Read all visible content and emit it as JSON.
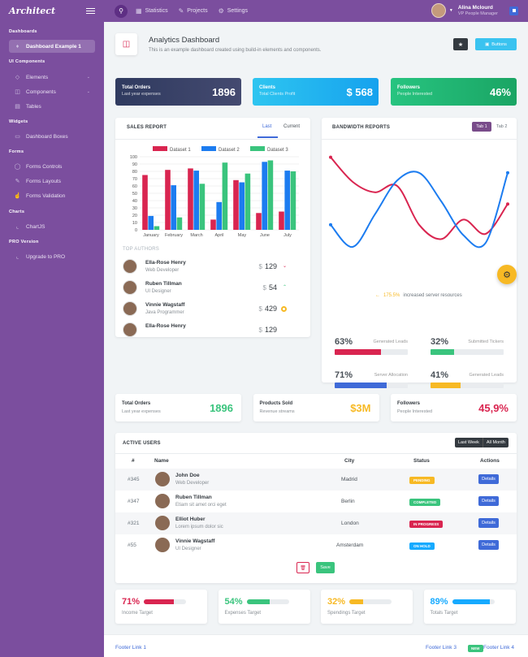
{
  "app": {
    "logo": "Architect"
  },
  "topnav": [
    {
      "label": "Statistics",
      "icon": "grid-icon"
    },
    {
      "label": "Projects",
      "icon": "edit-icon"
    },
    {
      "label": "Settings",
      "icon": "gear-icon"
    }
  ],
  "user": {
    "name": "Alina Mclourd",
    "role": "VP People Manager"
  },
  "sidebar": {
    "sections": [
      "Dashboards",
      "UI Components",
      "Widgets",
      "Forms",
      "Charts",
      "PRO Version"
    ],
    "items": [
      "Dashboard Example 1",
      "Elements",
      "Components",
      "Tables",
      "Dashboard Boxes",
      "Forms Controls",
      "Forms Layouts",
      "Forms Validation",
      "ChartJS",
      "Upgrade to PRO"
    ]
  },
  "page": {
    "title": "Analytics Dashboard",
    "subtitle": "This is an example dashboard created using build-in elements and components.",
    "buttons_label": "Buttons"
  },
  "tiles": [
    {
      "title": "Total Orders",
      "sub": "Last year expenses",
      "value": "1896",
      "color": "#444a70"
    },
    {
      "title": "Clients",
      "sub": "Total Clients Profit",
      "value": "$ 568",
      "color": "#2ec5f0"
    },
    {
      "title": "Followers",
      "sub": "People Interested",
      "value": "46%",
      "color": "#1ec580"
    }
  ],
  "sales": {
    "title": "Sales Report",
    "tabs": [
      "Last",
      "Current"
    ],
    "top_authors_label": "Top Authors",
    "authors": [
      {
        "name": "Ella-Rose Henry",
        "role": "Web Developer",
        "currency": "$",
        "value": "129",
        "indicator": "down"
      },
      {
        "name": "Ruben Tillman",
        "role": "UI Designer",
        "currency": "$",
        "value": "54",
        "indicator": "up"
      },
      {
        "name": "Vinnie Wagstaff",
        "role": "Java Programmer",
        "currency": "$",
        "value": "429",
        "indicator": "dot"
      },
      {
        "name": "Ella-Rose Henry",
        "role": "",
        "currency": "$",
        "value": "129",
        "indicator": ""
      }
    ]
  },
  "chart_data": [
    {
      "type": "bar",
      "categories": [
        "January",
        "February",
        "March",
        "April",
        "May",
        "June",
        "July"
      ],
      "series": [
        {
          "name": "Dataset 1",
          "color": "#d92550",
          "values": [
            75,
            82,
            84,
            14,
            68,
            23,
            25
          ]
        },
        {
          "name": "Dataset 2",
          "color": "#1c7cf0",
          "values": [
            19,
            61,
            81,
            38,
            65,
            93,
            81
          ]
        },
        {
          "name": "Dataset 3",
          "color": "#3ac47d",
          "values": [
            5,
            17,
            63,
            92,
            77,
            95,
            80
          ]
        }
      ],
      "ylim": [
        0,
        100
      ],
      "yticks": [
        0,
        10,
        20,
        30,
        40,
        50,
        60,
        70,
        80,
        90,
        100
      ],
      "legend": "top",
      "grid": true
    },
    {
      "type": "line",
      "title": "Bandwidth Reports",
      "series": [
        {
          "color": "#d92550",
          "values": [
            94,
            75,
            67,
            72,
            42,
            31,
            46,
            35,
            58
          ]
        },
        {
          "color": "#1c7cf0",
          "values": [
            42,
            25,
            50,
            76,
            82,
            60,
            34,
            28,
            82
          ]
        }
      ]
    }
  ],
  "bandwidth": {
    "title": "Bandwidth Reports",
    "tabs": [
      "Tab 1",
      "Tab 2"
    ],
    "note_value": "175.5%",
    "note_text": "increased server resources",
    "stats": [
      {
        "value": "63%",
        "label": "Generated Leads",
        "color": "#d92550",
        "fill": 0.63
      },
      {
        "value": "32%",
        "label": "Submitted Tickers",
        "color": "#3ac47d",
        "fill": 0.32
      },
      {
        "value": "71%",
        "label": "Server Allocation",
        "color": "#3f6ad8",
        "fill": 0.71
      },
      {
        "value": "41%",
        "label": "Generated Leads",
        "color": "#f7b924",
        "fill": 0.41
      }
    ]
  },
  "tiles2": [
    {
      "title": "Total Orders",
      "sub": "Last year expenses",
      "value": "1896",
      "color": "#3ac47d"
    },
    {
      "title": "Products Sold",
      "sub": "Revenue streams",
      "value": "$3M",
      "color": "#f7b924"
    },
    {
      "title": "Followers",
      "sub": "People Interested",
      "value": "45,9%",
      "color": "#d92550"
    }
  ],
  "active_users": {
    "title": "Active Users",
    "toggle": [
      "Last Week",
      "All Month"
    ],
    "headers": [
      "#",
      "Name",
      "City",
      "Status",
      "Actions"
    ],
    "rows": [
      {
        "id": "#345",
        "name": "John Doe",
        "role": "Web Developer",
        "city": "Madrid",
        "status": "Pending",
        "status_color": "#f7b924",
        "action": "Details"
      },
      {
        "id": "#347",
        "name": "Ruben Tillman",
        "role": "Etiam sit amet orci eget",
        "city": "Berlin",
        "status": "Completed",
        "status_color": "#3ac47d",
        "action": "Details"
      },
      {
        "id": "#321",
        "name": "Elliot Huber",
        "role": "Lorem ipsum dolor sic",
        "city": "London",
        "status": "In Progress",
        "status_color": "#d92550",
        "action": "Details"
      },
      {
        "id": "#55",
        "name": "Vinnie Wagstaff",
        "role": "UI Designer",
        "city": "Amsterdam",
        "status": "On Hold",
        "status_color": "#16aaff",
        "action": "Details"
      }
    ],
    "save_label": "Save"
  },
  "targets": [
    {
      "value": "71%",
      "label": "Income Target",
      "color": "#d92550",
      "fill": 0.71
    },
    {
      "value": "54%",
      "label": "Expenses Target",
      "color": "#3ac47d",
      "fill": 0.54
    },
    {
      "value": "32%",
      "label": "Spendings Target",
      "color": "#f7b924",
      "fill": 0.32
    },
    {
      "value": "89%",
      "label": "Totals Target",
      "color": "#16aaff",
      "fill": 0.89
    }
  ],
  "footer": {
    "link1": "Footer Link 1",
    "link3": "Footer Link 3",
    "new_badge": "NEW",
    "link4": "Footer Link 4"
  }
}
